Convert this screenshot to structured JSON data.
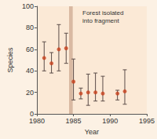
{
  "chart_data": {
    "type": "scatter",
    "x_label": "Year",
    "y_label": "Species",
    "x": [
      1981,
      1982,
      1983,
      1984,
      1985,
      1986,
      1987,
      1988,
      1989,
      1991,
      1992
    ],
    "values": [
      52,
      47,
      60,
      61,
      30,
      19,
      20,
      20,
      19,
      19,
      21
    ],
    "error_low": [
      40,
      38,
      40,
      47,
      13,
      14,
      8,
      12,
      12,
      13,
      9
    ],
    "error_high": [
      67,
      57,
      83,
      75,
      51,
      24,
      37,
      38,
      35,
      22,
      41
    ],
    "color": "#c8401c",
    "xlim": [
      1980,
      1995
    ],
    "xticks": [
      1980,
      1985,
      1990,
      1995
    ],
    "ylim": [
      0,
      100
    ],
    "yticks": [
      0,
      20,
      40,
      60,
      80,
      100
    ],
    "grid": false,
    "annotations": [
      {
        "text": "Forest isolated into fragment",
        "x_range": [
          1984.4,
          1984.9
        ]
      }
    ]
  }
}
